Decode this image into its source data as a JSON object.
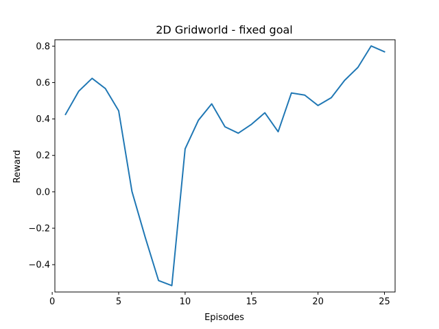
{
  "chart_data": {
    "type": "line",
    "title": "2D Gridworld - fixed goal",
    "xlabel": "Episodes",
    "ylabel": "Reward",
    "xlim": [
      0.2,
      25.8
    ],
    "ylim": [
      -0.55,
      0.835
    ],
    "xticks": [
      0,
      5,
      10,
      15,
      20,
      25
    ],
    "xtick_labels": [
      "0",
      "5",
      "10",
      "15",
      "20",
      "25"
    ],
    "yticks": [
      -0.4,
      -0.2,
      0.0,
      0.2,
      0.4,
      0.6,
      0.8
    ],
    "ytick_labels": [
      "−0.4",
      "−0.2",
      "0.0",
      "0.2",
      "0.4",
      "0.6",
      "0.8"
    ],
    "grid": false,
    "series": [
      {
        "color": "#1f77b4",
        "x": [
          1,
          2,
          3,
          4,
          5,
          6,
          7,
          8,
          9,
          10,
          11,
          12,
          13,
          14,
          15,
          16,
          17,
          18,
          19,
          20,
          21,
          22,
          23,
          24,
          25
        ],
        "y": [
          0.425,
          0.553,
          0.623,
          0.567,
          0.445,
          0.002,
          -0.25,
          -0.487,
          -0.515,
          0.236,
          0.393,
          0.483,
          0.357,
          0.322,
          0.371,
          0.434,
          0.33,
          0.543,
          0.531,
          0.474,
          0.517,
          0.612,
          0.683,
          0.801,
          0.769
        ]
      }
    ]
  }
}
